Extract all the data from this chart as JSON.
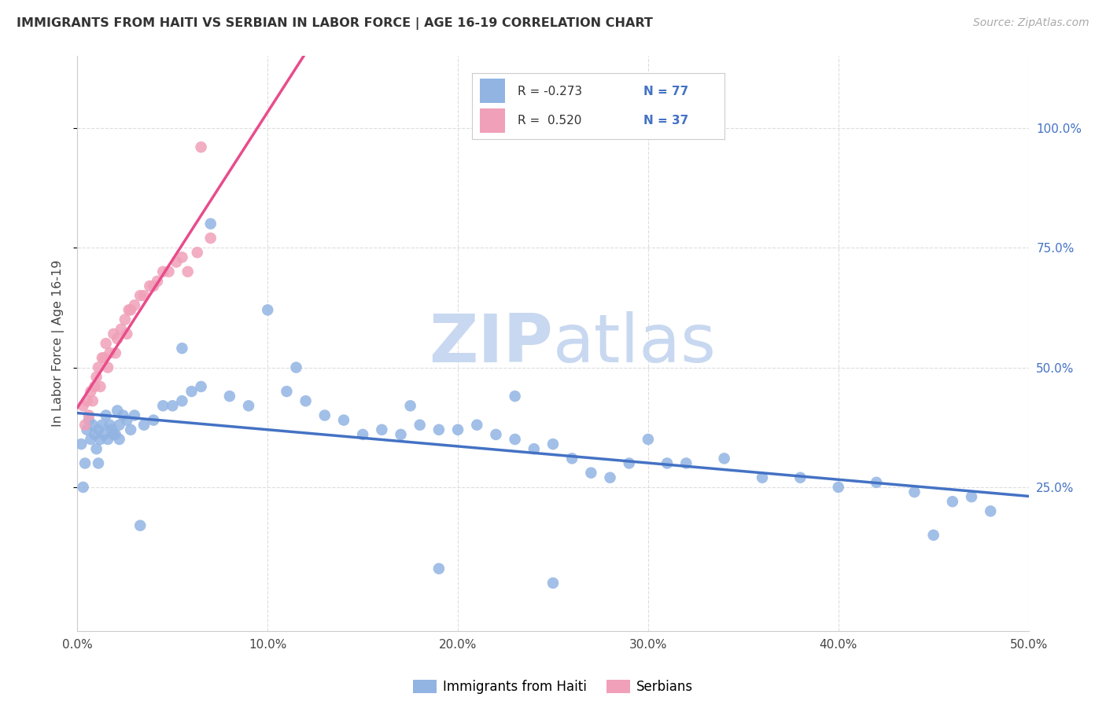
{
  "title": "IMMIGRANTS FROM HAITI VS SERBIAN IN LABOR FORCE | AGE 16-19 CORRELATION CHART",
  "source": "Source: ZipAtlas.com",
  "ylabel_left": "In Labor Force | Age 16-19",
  "x_tick_labels": [
    "0.0%",
    "10.0%",
    "20.0%",
    "30.0%",
    "40.0%",
    "50.0%"
  ],
  "x_tick_values": [
    0,
    10,
    20,
    30,
    40,
    50
  ],
  "y_tick_labels_right": [
    "25.0%",
    "50.0%",
    "75.0%",
    "100.0%"
  ],
  "y_tick_values_right": [
    25,
    50,
    75,
    100
  ],
  "xlim": [
    0,
    50
  ],
  "ylim": [
    -5,
    115
  ],
  "legend_r_haiti": "R = -0.273",
  "legend_n_haiti": "N = 77",
  "legend_r_serbian": "R =  0.520",
  "legend_n_serbian": "N = 37",
  "haiti_color": "#92b4e3",
  "serbian_color": "#f0a0b8",
  "haiti_line_color": "#4472c4",
  "serbian_line_color": "#e84c8b",
  "watermark_zip": "ZIP",
  "watermark_atlas": "atlas",
  "watermark_color_zip": "#c8d8f0",
  "watermark_color_atlas": "#c8d8f0",
  "background_color": "#ffffff",
  "grid_color": "#dddddd",
  "haiti_scatter_x": [
    0.2,
    0.4,
    0.5,
    0.6,
    0.7,
    0.8,
    0.9,
    1.0,
    1.1,
    1.2,
    1.3,
    1.4,
    1.5,
    1.6,
    1.7,
    1.8,
    1.9,
    2.0,
    2.1,
    2.2,
    2.4,
    2.6,
    2.8,
    3.0,
    3.5,
    4.0,
    4.5,
    5.0,
    5.5,
    6.0,
    6.5,
    7.0,
    8.0,
    9.0,
    10.0,
    11.0,
    12.0,
    13.0,
    14.0,
    15.0,
    16.0,
    17.0,
    18.0,
    19.0,
    20.0,
    21.0,
    22.0,
    23.0,
    24.0,
    25.0,
    26.0,
    27.0,
    28.0,
    29.0,
    30.0,
    32.0,
    34.0,
    36.0,
    38.0,
    40.0,
    42.0,
    44.0,
    46.0,
    47.0,
    48.0,
    5.5,
    11.5,
    17.5,
    23.0,
    0.3,
    1.1,
    2.2,
    3.3,
    19.0,
    25.0,
    31.0,
    45.0
  ],
  "haiti_scatter_y": [
    34.0,
    30.0,
    37.0,
    39.0,
    35.0,
    38.0,
    36.0,
    33.0,
    37.0,
    35.0,
    38.0,
    36.0,
    40.0,
    35.0,
    38.0,
    37.0,
    36.0,
    36.0,
    41.0,
    38.0,
    40.0,
    39.0,
    37.0,
    40.0,
    38.0,
    39.0,
    42.0,
    42.0,
    43.0,
    45.0,
    46.0,
    80.0,
    44.0,
    42.0,
    62.0,
    45.0,
    43.0,
    40.0,
    39.0,
    36.0,
    37.0,
    36.0,
    38.0,
    37.0,
    37.0,
    38.0,
    36.0,
    35.0,
    33.0,
    34.0,
    31.0,
    28.0,
    27.0,
    30.0,
    35.0,
    30.0,
    31.0,
    27.0,
    27.0,
    25.0,
    26.0,
    24.0,
    22.0,
    23.0,
    20.0,
    54.0,
    50.0,
    42.0,
    44.0,
    25.0,
    30.0,
    35.0,
    17.0,
    8.0,
    5.0,
    30.0,
    15.0
  ],
  "serbian_scatter_x": [
    0.3,
    0.5,
    0.7,
    0.9,
    1.0,
    1.1,
    1.3,
    1.5,
    1.7,
    1.9,
    2.1,
    2.3,
    2.5,
    2.7,
    3.0,
    3.3,
    3.8,
    4.2,
    4.8,
    5.2,
    5.8,
    6.3,
    7.0,
    0.4,
    0.8,
    1.2,
    1.6,
    2.0,
    2.6,
    3.5,
    4.5,
    5.5,
    0.6,
    1.4,
    2.8,
    4.0,
    6.5
  ],
  "serbian_scatter_y": [
    42.0,
    43.0,
    45.0,
    46.0,
    48.0,
    50.0,
    52.0,
    55.0,
    53.0,
    57.0,
    56.0,
    58.0,
    60.0,
    62.0,
    63.0,
    65.0,
    67.0,
    68.0,
    70.0,
    72.0,
    70.0,
    74.0,
    77.0,
    38.0,
    43.0,
    46.0,
    50.0,
    53.0,
    57.0,
    65.0,
    70.0,
    73.0,
    40.0,
    52.0,
    62.0,
    67.0,
    96.0
  ]
}
